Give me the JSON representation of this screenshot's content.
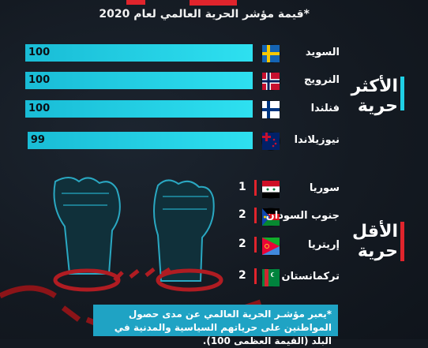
{
  "subtitle": "*قيمة مؤشر الحرية العالمي لعام 2020",
  "groups": {
    "most": {
      "line1": "الأكثر",
      "line2": "حرية"
    },
    "least": {
      "line1": "الأقل",
      "line2": "حرية"
    }
  },
  "chart_data": {
    "type": "bar",
    "title": "",
    "subtitle": "*قيمة مؤشر الحرية العالمي لعام 2020",
    "xlim": [
      0,
      100
    ],
    "most_free": [
      {
        "country": "السويد",
        "value": 100,
        "flag": "sweden-flag"
      },
      {
        "country": "النرويج",
        "value": 100,
        "flag": "norway-flag"
      },
      {
        "country": "فنلندا",
        "value": 100,
        "flag": "finland-flag"
      },
      {
        "country": "نيوزيلاندا",
        "value": 99,
        "flag": "new-zealand-flag"
      }
    ],
    "least_free": [
      {
        "country": "سوريا",
        "value": 1,
        "flag": "syria-flag"
      },
      {
        "country": "جنوب السودان",
        "value": 2,
        "flag": "south-sudan-flag"
      },
      {
        "country": "إريتريا",
        "value": 2,
        "flag": "eritrea-flag"
      },
      {
        "country": "تركمانستان",
        "value": 2,
        "flag": "turkmenistan-flag"
      }
    ]
  },
  "footnote": "*يعبر مؤشـر الحرية العالمي عن مدى حصول المواطنين على حرياتهم السياسية والمدنية في البلد (القيمة العظمى 100).",
  "colors": {
    "bar": "#22cfe4",
    "accent": "#1fd0e6",
    "red": "#e0242c",
    "footnote_bg": "#1fa3c4"
  }
}
